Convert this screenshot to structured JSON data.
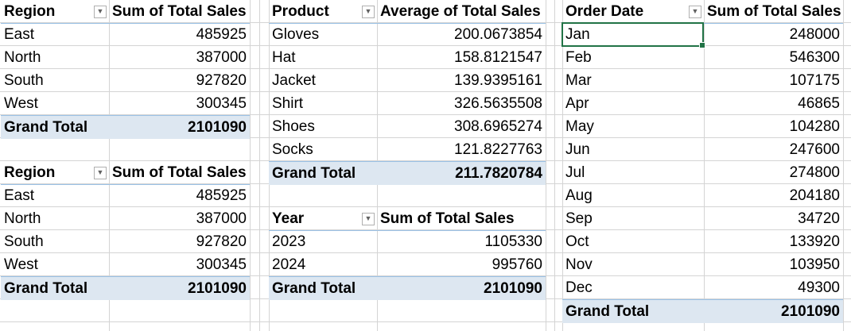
{
  "pivots": {
    "region_a": {
      "col1": "Region",
      "col2": "Sum of Total Sales",
      "rows": [
        {
          "label": "East",
          "value": "485925"
        },
        {
          "label": "North",
          "value": "387000"
        },
        {
          "label": "South",
          "value": "927820"
        },
        {
          "label": "West",
          "value": "300345"
        }
      ],
      "total_label": "Grand Total",
      "total_value": "2101090"
    },
    "region_b": {
      "col1": "Region",
      "col2": "Sum of Total Sales",
      "rows": [
        {
          "label": "East",
          "value": "485925"
        },
        {
          "label": "North",
          "value": "387000"
        },
        {
          "label": "South",
          "value": "927820"
        },
        {
          "label": "West",
          "value": "300345"
        }
      ],
      "total_label": "Grand Total",
      "total_value": "2101090"
    },
    "product": {
      "col1": "Product",
      "col2": "Average of Total Sales",
      "rows": [
        {
          "label": "Gloves",
          "value": "200.0673854"
        },
        {
          "label": "Hat",
          "value": "158.8121547"
        },
        {
          "label": "Jacket",
          "value": "139.9395161"
        },
        {
          "label": "Shirt",
          "value": "326.5635508"
        },
        {
          "label": "Shoes",
          "value": "308.6965274"
        },
        {
          "label": "Socks",
          "value": "121.8227763"
        }
      ],
      "total_label": "Grand Total",
      "total_value": "211.7820784"
    },
    "year": {
      "col1": "Year",
      "col2": "Sum of Total Sales",
      "rows": [
        {
          "label": "2023",
          "value": "1105330"
        },
        {
          "label": "2024",
          "value": "995760"
        }
      ],
      "total_label": "Grand Total",
      "total_value": "2101090"
    },
    "order_date": {
      "col1": "Order Date",
      "col2": "Sum of Total Sales",
      "rows": [
        {
          "label": "Jan",
          "value": "248000"
        },
        {
          "label": "Feb",
          "value": "546300"
        },
        {
          "label": "Mar",
          "value": "107175"
        },
        {
          "label": "Apr",
          "value": "46865"
        },
        {
          "label": "May",
          "value": "104280"
        },
        {
          "label": "Jun",
          "value": "247600"
        },
        {
          "label": "Jul",
          "value": "274800"
        },
        {
          "label": "Aug",
          "value": "204180"
        },
        {
          "label": "Sep",
          "value": "34720"
        },
        {
          "label": "Oct",
          "value": "133920"
        },
        {
          "label": "Nov",
          "value": "103950"
        },
        {
          "label": "Dec",
          "value": "49300"
        }
      ],
      "total_label": "Grand Total",
      "total_value": "2101090"
    }
  },
  "selection": {
    "pivot": "order_date",
    "row": 0
  },
  "colors": {
    "header_border": "#9bc2e6",
    "total_fill": "#dde7f1",
    "gridline": "#d4d4d4",
    "selection": "#217346"
  },
  "icons": {
    "filter": "filter-dropdown-icon"
  }
}
